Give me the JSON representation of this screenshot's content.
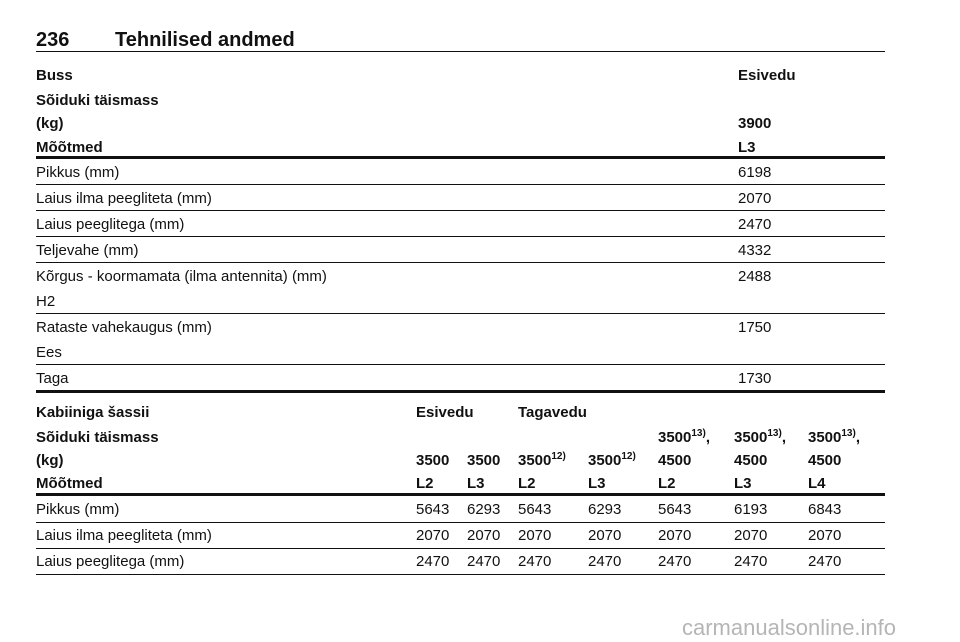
{
  "header": {
    "page": "236",
    "title": "Tehnilised andmed"
  },
  "table1": {
    "head": {
      "label": "Buss",
      "value": "Esivedu"
    },
    "mass": {
      "label": [
        "Sõiduki täismass",
        "(kg)"
      ],
      "value": "3900"
    },
    "dims": {
      "label": "Mõõtmed",
      "value": "L3"
    },
    "rows": [
      {
        "label": "Pikkus (mm)",
        "value": "6198"
      },
      {
        "label": "Laius ilma peegliteta (mm)",
        "value": "2070"
      },
      {
        "label": "Laius peeglitega (mm)",
        "value": "2470"
      },
      {
        "label": "Teljevahe (mm)",
        "value": "4332"
      },
      {
        "label": "Kõrgus - koormamata (ilma antennita) (mm)",
        "sub": "H2",
        "value": "2488"
      },
      {
        "label": "Rataste vahekaugus (mm)",
        "sub": "Ees",
        "value": "1750"
      },
      {
        "label": "Taga",
        "value": "1730"
      }
    ]
  },
  "table2": {
    "head": {
      "label": "Kabiiniga šassii",
      "groups": [
        "Esivedu",
        "Tagavedu"
      ]
    },
    "mass": {
      "label": [
        "Sõiduki täismass",
        "(kg)"
      ],
      "cells": [
        {
          "value": "3500"
        },
        {
          "value": "3500"
        },
        {
          "value": "3500",
          "note": "12)"
        },
        {
          "value": "3500",
          "note": "12)"
        },
        {
          "value": "3500",
          "note": "13)",
          "tail": ",",
          "second": "4500"
        },
        {
          "value": "3500",
          "note": "13)",
          "tail": ",",
          "second": "4500"
        },
        {
          "value": "3500",
          "note": "13)",
          "tail": ",",
          "second": "4500"
        }
      ]
    },
    "dims": {
      "label": "Mõõtmed",
      "cells": [
        "L2",
        "L3",
        "L2",
        "L3",
        "L2",
        "L3",
        "L4"
      ]
    },
    "rows": [
      {
        "label": "Pikkus (mm)",
        "values": [
          "5643",
          "6293",
          "5643",
          "6293",
          "5643",
          "6193",
          "6843"
        ]
      },
      {
        "label": "Laius ilma peegliteta (mm)",
        "values": [
          "2070",
          "2070",
          "2070",
          "2070",
          "2070",
          "2070",
          "2070"
        ]
      },
      {
        "label": "Laius peeglitega (mm)",
        "values": [
          "2470",
          "2470",
          "2470",
          "2470",
          "2470",
          "2470",
          "2470"
        ]
      }
    ]
  },
  "footer": {
    "watermark": "carmanualsonline.info"
  }
}
